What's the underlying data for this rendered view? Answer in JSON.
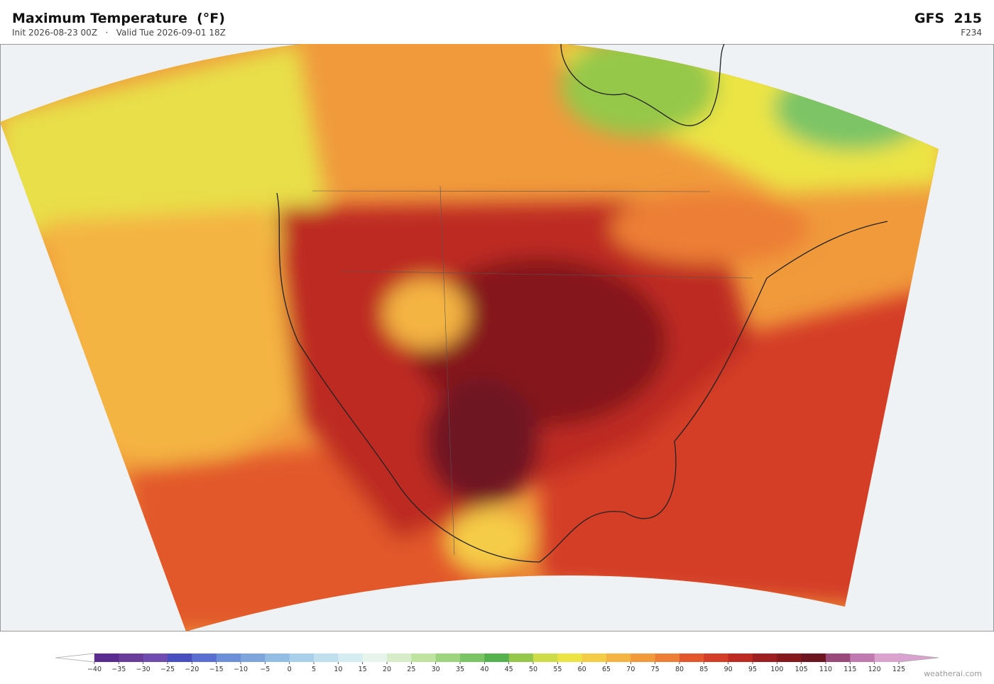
{
  "header": {
    "title": "Maximum Temperature  (°F)",
    "init": "Init 2026-08-23 00Z",
    "separator": "·",
    "valid": "Valid Tue 2026-09-01 18Z",
    "model": "GFS  215",
    "forecast_hour": "F234"
  },
  "colorbar": {
    "ticks": [
      "−40",
      "−35",
      "−30",
      "−25",
      "−20",
      "−15",
      "−10",
      "−5",
      "0",
      "5",
      "10",
      "15",
      "20",
      "25",
      "30",
      "35",
      "40",
      "45",
      "50",
      "55",
      "60",
      "65",
      "70",
      "75",
      "80",
      "85",
      "90",
      "95",
      "100",
      "105",
      "110",
      "115",
      "120",
      "125"
    ],
    "colors": [
      "#5b2c8f",
      "#6a3d9a",
      "#6f4cb0",
      "#4a4fbf",
      "#5a6fcf",
      "#6d8ed8",
      "#7fa6dc",
      "#93bde3",
      "#a9d0ea",
      "#c0e0ef",
      "#d5ecf2",
      "#e6f4ec",
      "#d7ecc8",
      "#bfe3a0",
      "#9fd47e",
      "#7cc466",
      "#55b04e",
      "#95c84a",
      "#cddc48",
      "#ece445",
      "#f5cc47",
      "#f4b443",
      "#f09a3c",
      "#ec7e36",
      "#e2582c",
      "#d43e26",
      "#bd2a22",
      "#9d1f20",
      "#85191e",
      "#6e1522",
      "#9a4a7a",
      "#c07aaf",
      "#d9a2cf"
    ],
    "under": "#ffffff",
    "over": "#d9a2cf"
  },
  "credit": "weatherai.com"
}
